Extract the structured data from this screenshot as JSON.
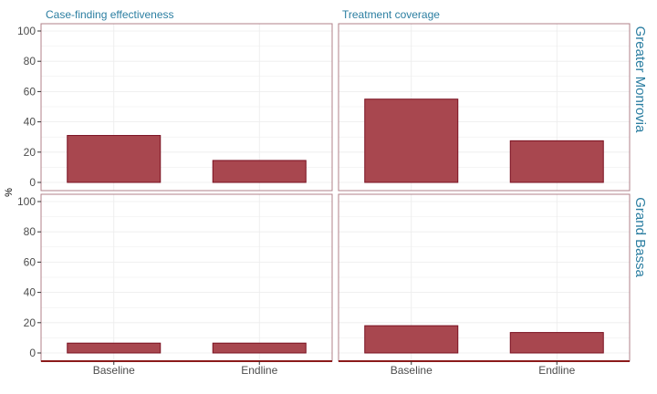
{
  "chart_data": {
    "type": "bar",
    "facet_columns": [
      "Case-finding effectiveness",
      "Treatment coverage"
    ],
    "facet_rows": [
      "Greater Monrovia",
      "Grand Bassa"
    ],
    "categories": [
      "Baseline",
      "Endline"
    ],
    "ylabel": "%",
    "yticks": [
      0,
      20,
      40,
      60,
      80,
      100
    ],
    "ylim": [
      -3,
      104
    ],
    "grid": true,
    "panels": [
      {
        "column": "Case-finding effectiveness",
        "row": "Greater Monrovia",
        "values": [
          31,
          14.5
        ]
      },
      {
        "column": "Treatment coverage",
        "row": "Greater Monrovia",
        "values": [
          55,
          27.5
        ]
      },
      {
        "column": "Case-finding effectiveness",
        "row": "Grand Bassa",
        "values": [
          6.5,
          6.5
        ]
      },
      {
        "column": "Treatment coverage",
        "row": "Grand Bassa",
        "values": [
          18,
          13.5
        ]
      }
    ],
    "colors": {
      "bar_fill": "#a8474f",
      "bar_stroke": "#7a1020",
      "panel_border": "#b08088",
      "axis_line": "#8b1a1a",
      "strip_text": "#2b7ea1"
    }
  }
}
